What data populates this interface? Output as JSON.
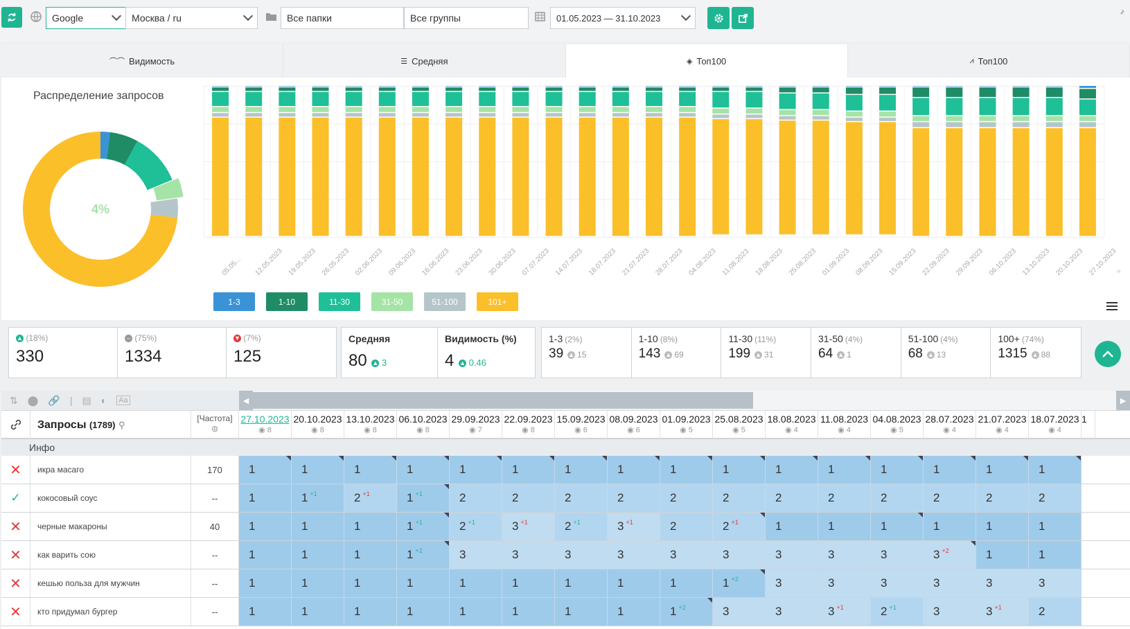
{
  "toolbar": {
    "engine": "Google",
    "region": "Москва / ru",
    "folders": "Все папки",
    "groups": "Все группы",
    "date_range": "01.05.2023 — 31.10.2023"
  },
  "tabs": [
    {
      "label": "Видимость",
      "icon": "glasses-icon",
      "active": false
    },
    {
      "label": "Средняя",
      "icon": "list-icon",
      "active": false
    },
    {
      "label": "Топ100",
      "icon": "layers-icon",
      "active": true
    },
    {
      "label": "Топ100",
      "icon": "line-chart-icon",
      "active": false
    }
  ],
  "donut": {
    "title": "Распределение запросов",
    "center_label": "4%",
    "segments": [
      {
        "range": "1-3",
        "value": 2,
        "color": "#3a93d6"
      },
      {
        "range": "1-10",
        "value": 6,
        "color": "#1f8c66"
      },
      {
        "range": "11-30",
        "value": 11,
        "color": "#1fbf97"
      },
      {
        "range": "31-50",
        "value": 4,
        "color": "#a6e3a6",
        "exploded": true
      },
      {
        "range": "51-100",
        "value": 4,
        "color": "#b5c6ca"
      },
      {
        "range": "101+",
        "value": 74,
        "color": "#fbbf2a"
      }
    ]
  },
  "chart_data": {
    "type": "bar",
    "stacked": true,
    "categories": [
      "05.05...",
      "12.05.2023",
      "19.05.2023",
      "26.05.2023",
      "02.06.2023",
      "09.06.2023",
      "16.06.2023",
      "23.06.2023",
      "30.06.2023",
      "07.07.2023",
      "14.07.2023",
      "18.07.2023",
      "21.07.2023",
      "28.07.2023",
      "04.08.2023",
      "11.08.2023",
      "18.08.2023",
      "25.08.2023",
      "01.09.2023",
      "08.09.2023",
      "15.09.2023",
      "22.09.2023",
      "29.09.2023",
      "06.10.2023",
      "13.10.2023",
      "20.10.2023",
      "27.10.2023"
    ],
    "series": [
      {
        "name": "1-3",
        "color": "#3a93d6",
        "values": [
          1,
          1,
          1,
          1,
          1,
          1,
          1,
          1,
          1,
          1,
          1,
          1,
          1,
          1,
          1,
          1,
          1,
          1,
          1,
          1,
          1,
          1,
          1,
          1,
          1,
          1,
          2
        ]
      },
      {
        "name": "1-10",
        "color": "#1f8c66",
        "values": [
          3,
          3,
          3,
          3,
          3,
          3,
          3,
          3,
          3,
          3,
          3,
          3,
          3,
          3,
          3,
          3,
          3,
          4,
          4,
          5,
          5,
          7,
          7,
          7,
          7,
          7,
          7
        ]
      },
      {
        "name": "11-30",
        "color": "#1fbf97",
        "values": [
          10,
          10,
          10,
          10,
          10,
          10,
          10,
          10,
          10,
          10,
          10,
          10,
          10,
          10,
          10,
          11,
          11,
          11,
          11,
          11,
          11,
          12,
          12,
          12,
          12,
          12,
          11
        ]
      },
      {
        "name": "31-50",
        "color": "#a6e3a6",
        "values": [
          4,
          4,
          4,
          4,
          4,
          4,
          4,
          4,
          4,
          4,
          4,
          4,
          4,
          4,
          4,
          4,
          4,
          4,
          4,
          4,
          4,
          4,
          4,
          4,
          4,
          4,
          4
        ]
      },
      {
        "name": "51-100",
        "color": "#b5c6ca",
        "values": [
          3,
          3,
          3,
          3,
          3,
          3,
          3,
          3,
          3,
          3,
          3,
          3,
          3,
          3,
          3,
          3,
          3,
          3,
          3,
          3,
          3,
          4,
          4,
          4,
          4,
          4,
          4
        ]
      },
      {
        "name": "101+",
        "color": "#fbbf2a",
        "values": [
          79,
          79,
          79,
          79,
          79,
          79,
          79,
          79,
          79,
          79,
          79,
          79,
          79,
          79,
          79,
          77,
          77,
          76,
          76,
          75,
          75,
          72,
          72,
          72,
          72,
          72,
          72
        ]
      }
    ],
    "ylim": [
      0,
      100
    ],
    "grid": true,
    "legend": "bottom-left"
  },
  "legend": [
    {
      "label": "1-3",
      "bg": "#3a93d6",
      "fg": "#ffffff"
    },
    {
      "label": "1-10",
      "bg": "#1f8c66",
      "fg": "#ffffff"
    },
    {
      "label": "11-30",
      "bg": "#1fbf97",
      "fg": "#ffffff"
    },
    {
      "label": "31-50",
      "bg": "#a6e3a6",
      "fg": "#ffffff"
    },
    {
      "label": "51-100",
      "bg": "#b5c6ca",
      "fg": "#ffffff"
    },
    {
      "label": "101+",
      "bg": "#fbbf2a",
      "fg": "#ffffff"
    }
  ],
  "stats": {
    "up": {
      "pct": "(18%)",
      "value": "330"
    },
    "same": {
      "pct": "(75%)",
      "value": "1334"
    },
    "down": {
      "pct": "(7%)",
      "value": "125"
    },
    "avg": {
      "label": "Средняя",
      "value": "80",
      "delta": "3"
    },
    "vis": {
      "label": "Видимость (%)",
      "value": "4",
      "delta": "0.46"
    },
    "ranges": [
      {
        "label": "1-3",
        "pct": "(2%)",
        "value": "39",
        "delta": "15"
      },
      {
        "label": "1-10",
        "pct": "(8%)",
        "value": "143",
        "delta": "69"
      },
      {
        "label": "11-30",
        "pct": "(11%)",
        "value": "199",
        "delta": "31"
      },
      {
        "label": "31-50",
        "pct": "(4%)",
        "value": "64",
        "delta": "1"
      },
      {
        "label": "51-100",
        "pct": "(4%)",
        "value": "68",
        "delta": "13"
      },
      {
        "label": "100+",
        "pct": "(74%)",
        "value": "1315",
        "delta": "88"
      }
    ]
  },
  "table": {
    "queries_label": "Запросы",
    "queries_count": "(1789)",
    "freq_label": "[Частота]",
    "info_label": "Инфо",
    "dates": [
      {
        "date": "27.10.2023",
        "n": "8",
        "active": true
      },
      {
        "date": "20.10.2023",
        "n": "8"
      },
      {
        "date": "13.10.2023",
        "n": "8"
      },
      {
        "date": "06.10.2023",
        "n": "8"
      },
      {
        "date": "29.09.2023",
        "n": "7"
      },
      {
        "date": "22.09.2023",
        "n": "8"
      },
      {
        "date": "15.09.2023",
        "n": "6"
      },
      {
        "date": "08.09.2023",
        "n": "6"
      },
      {
        "date": "01.09.2023",
        "n": "5"
      },
      {
        "date": "25.08.2023",
        "n": "5"
      },
      {
        "date": "18.08.2023",
        "n": "4"
      },
      {
        "date": "11.08.2023",
        "n": "4"
      },
      {
        "date": "04.08.2023",
        "n": "5"
      },
      {
        "date": "28.07.2023",
        "n": "4"
      },
      {
        "date": "21.07.2023",
        "n": "4"
      },
      {
        "date": "18.07.2023",
        "n": "4"
      },
      {
        "date": "1",
        "n": ""
      }
    ],
    "rows": [
      {
        "status": "x",
        "query": "икра масаго",
        "freq": "170",
        "cells": [
          [
            "1",
            "",
            1
          ],
          [
            "1",
            "",
            1
          ],
          [
            "1",
            "",
            1
          ],
          [
            "1",
            "",
            1
          ],
          [
            "1",
            "",
            1
          ],
          [
            "1",
            "",
            1
          ],
          [
            "1",
            "",
            1
          ],
          [
            "1",
            "",
            1
          ],
          [
            "1",
            "",
            1
          ],
          [
            "1",
            "",
            1
          ],
          [
            "1",
            "",
            1
          ],
          [
            "1",
            "",
            1
          ],
          [
            "1",
            "",
            1
          ],
          [
            "1",
            "",
            1
          ],
          [
            "1",
            "",
            1
          ],
          [
            "1",
            "",
            1
          ]
        ]
      },
      {
        "status": "check",
        "query": "кокосовый соус",
        "freq": "--",
        "cells": [
          [
            "1",
            "",
            0
          ],
          [
            "1",
            "+1",
            0
          ],
          [
            "2",
            "+1m",
            0
          ],
          [
            "1",
            "+1",
            1
          ],
          [
            "2",
            "",
            0
          ],
          [
            "2",
            "",
            0
          ],
          [
            "2",
            "",
            0
          ],
          [
            "2",
            "",
            0
          ],
          [
            "2",
            "",
            0
          ],
          [
            "2",
            "",
            0
          ],
          [
            "2",
            "",
            0
          ],
          [
            "2",
            "",
            0
          ],
          [
            "2",
            "",
            0
          ],
          [
            "2",
            "",
            0
          ],
          [
            "2",
            "",
            0
          ],
          [
            "2",
            "",
            0
          ]
        ]
      },
      {
        "status": "x",
        "query": "черные макароны",
        "freq": "40",
        "cells": [
          [
            "1",
            "",
            0
          ],
          [
            "1",
            "",
            0
          ],
          [
            "1",
            "",
            0
          ],
          [
            "1",
            "+1",
            1
          ],
          [
            "2",
            "+1",
            0
          ],
          [
            "3",
            "+1m",
            0
          ],
          [
            "2",
            "+1",
            0
          ],
          [
            "3",
            "+1m",
            0
          ],
          [
            "2",
            "",
            0
          ],
          [
            "2",
            "+1m",
            1
          ],
          [
            "1",
            "",
            0
          ],
          [
            "1",
            "",
            0
          ],
          [
            "1",
            "",
            1
          ],
          [
            "1",
            "",
            0
          ],
          [
            "1",
            "",
            0
          ],
          [
            "1",
            "",
            0
          ]
        ]
      },
      {
        "status": "x",
        "query": "как варить сою",
        "freq": "--",
        "cells": [
          [
            "1",
            "",
            0
          ],
          [
            "1",
            "",
            0
          ],
          [
            "1",
            "",
            0
          ],
          [
            "1",
            "+2",
            1
          ],
          [
            "3",
            "",
            0
          ],
          [
            "3",
            "",
            0
          ],
          [
            "3",
            "",
            0
          ],
          [
            "3",
            "",
            0
          ],
          [
            "3",
            "",
            0
          ],
          [
            "3",
            "",
            0
          ],
          [
            "3",
            "",
            0
          ],
          [
            "3",
            "",
            0
          ],
          [
            "3",
            "",
            0
          ],
          [
            "3",
            "+2m",
            1
          ],
          [
            "1",
            "",
            0
          ],
          [
            "1",
            "",
            0
          ]
        ]
      },
      {
        "status": "x",
        "query": "кешью польза для мужчин",
        "freq": "--",
        "cells": [
          [
            "1",
            "",
            0
          ],
          [
            "1",
            "",
            0
          ],
          [
            "1",
            "",
            0
          ],
          [
            "1",
            "",
            0
          ],
          [
            "1",
            "",
            0
          ],
          [
            "1",
            "",
            0
          ],
          [
            "1",
            "",
            0
          ],
          [
            "1",
            "",
            0
          ],
          [
            "1",
            "",
            0
          ],
          [
            "1",
            "+2",
            1
          ],
          [
            "3",
            "",
            0
          ],
          [
            "3",
            "",
            0
          ],
          [
            "3",
            "",
            0
          ],
          [
            "3",
            "",
            0
          ],
          [
            "3",
            "",
            0
          ],
          [
            "3",
            "",
            0
          ]
        ]
      },
      {
        "status": "x",
        "query": "кто придумал бургер",
        "freq": "--",
        "cells": [
          [
            "1",
            "",
            0
          ],
          [
            "1",
            "",
            0
          ],
          [
            "1",
            "",
            0
          ],
          [
            "1",
            "",
            0
          ],
          [
            "1",
            "",
            0
          ],
          [
            "1",
            "",
            0
          ],
          [
            "1",
            "",
            0
          ],
          [
            "1",
            "",
            0
          ],
          [
            "1",
            "+2",
            1
          ],
          [
            "3",
            "",
            0
          ],
          [
            "3",
            "",
            0
          ],
          [
            "3",
            "+1m",
            0
          ],
          [
            "2",
            "+1",
            0
          ],
          [
            "3",
            "",
            0
          ],
          [
            "3",
            "+1m",
            0
          ],
          [
            "2",
            "",
            0
          ]
        ]
      }
    ]
  }
}
